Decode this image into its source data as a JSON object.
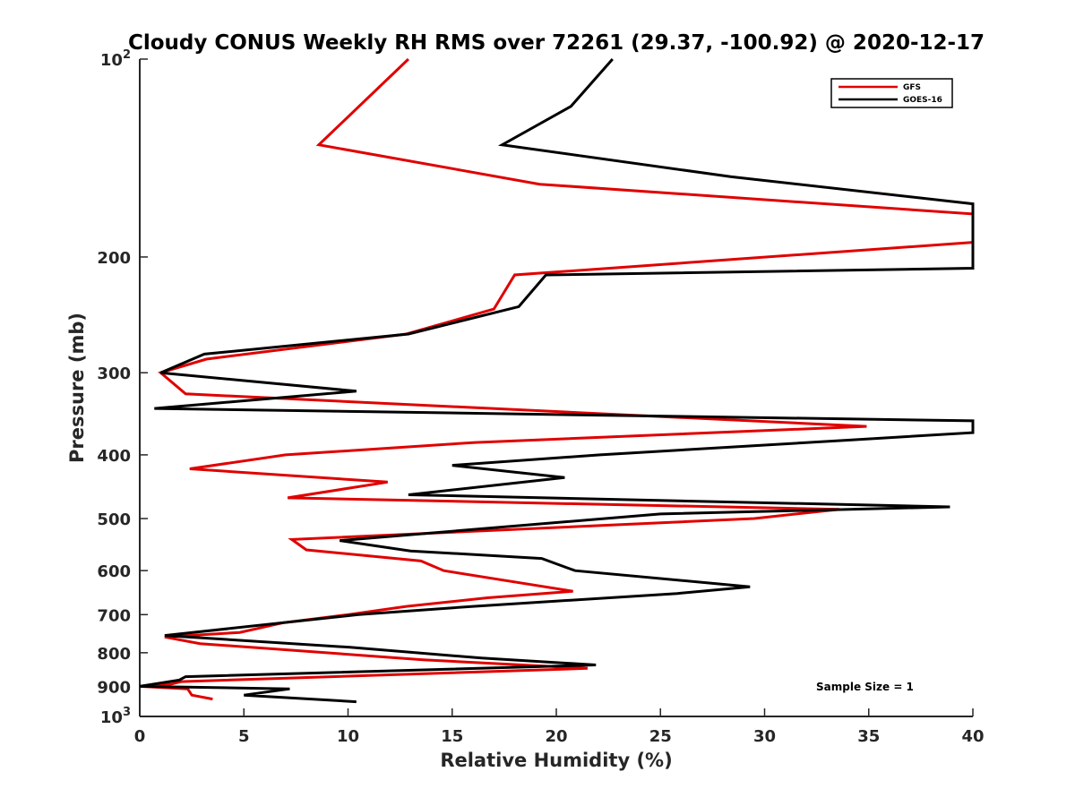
{
  "chart_data": {
    "type": "line",
    "title": "Cloudy CONUS Weekly RH RMS over 72261 (29.37, -100.92) @ 2020-12-17",
    "xlabel": "Relative Humidity (%)",
    "ylabel": "Pressure (mb)",
    "xlim": [
      0,
      40
    ],
    "ylim": [
      100,
      1000
    ],
    "y_scale": "log",
    "y_reversed": true,
    "x_ticks": [
      {
        "value": 0,
        "label": "0"
      },
      {
        "value": 5,
        "label": "5"
      },
      {
        "value": 10,
        "label": "10"
      },
      {
        "value": 15,
        "label": "15"
      },
      {
        "value": 20,
        "label": "20"
      },
      {
        "value": 25,
        "label": "25"
      },
      {
        "value": 30,
        "label": "30"
      },
      {
        "value": 35,
        "label": "35"
      },
      {
        "value": 40,
        "label": "40"
      }
    ],
    "y_ticks": [
      {
        "value": 100,
        "base": "10",
        "exp": "2"
      },
      {
        "value": 200,
        "label": "200"
      },
      {
        "value": 300,
        "label": "300"
      },
      {
        "value": 400,
        "label": "400"
      },
      {
        "value": 500,
        "label": "500"
      },
      {
        "value": 600,
        "label": "600"
      },
      {
        "value": 700,
        "label": "700"
      },
      {
        "value": 800,
        "label": "800"
      },
      {
        "value": 900,
        "label": "900"
      },
      {
        "value": 1000,
        "base": "10",
        "exp": "3"
      }
    ],
    "grid": false,
    "legend_position": "top-right",
    "annotation": "Sample Size = 1",
    "series": [
      {
        "name": "GFS",
        "color": "#e00000",
        "x": [
          12.9,
          8.6,
          19.2,
          40,
          40,
          18.0,
          17.0,
          12.8,
          3.2,
          1.0,
          2.2,
          34.9,
          16.1,
          7.0,
          2.4,
          11.9,
          7.1,
          33.6,
          29.5,
          7.3,
          8.0,
          13.5,
          14.6,
          20.8,
          16.7,
          12.8,
          10.0,
          6.9,
          4.8,
          1.2,
          2.9,
          13.6,
          21.5,
          2.0,
          1.5,
          0,
          2.3,
          2.5,
          3.5
        ],
        "y": [
          100,
          135,
          155,
          172,
          190,
          213,
          240,
          262,
          286,
          300,
          323,
          362,
          383,
          400,
          420,
          440,
          465,
          484,
          500,
          538,
          558,
          580,
          600,
          645,
          660,
          680,
          700,
          720,
          745,
          757,
          775,
          820,
          845,
          885,
          893,
          900,
          908,
          928,
          941
        ]
      },
      {
        "name": "GOES-16",
        "color": "#000000",
        "x": [
          22.7,
          20.7,
          17.4,
          28.4,
          40,
          40,
          19.5,
          18.2,
          12.9,
          3.1,
          1.0,
          10.4,
          0.7,
          40,
          40,
          33.9,
          22.1,
          15.0,
          20.4,
          12.9,
          38.9,
          25.0,
          9.6,
          13.0,
          19.3,
          20.9,
          29.3,
          25.8,
          16.0,
          10.5,
          1.2,
          10.1,
          16.4,
          21.9,
          2.2,
          1.9,
          0,
          7.2,
          5.0,
          10.4
        ],
        "y": [
          100,
          118,
          135,
          151,
          166,
          208,
          213,
          238,
          262,
          281,
          300,
          320,
          340,
          355,
          370,
          380,
          400,
          415,
          433,
          460,
          480,
          492,
          540,
          560,
          575,
          600,
          635,
          650,
          680,
          700,
          753,
          785,
          815,
          835,
          870,
          880,
          900,
          908,
          928,
          950
        ]
      }
    ]
  }
}
